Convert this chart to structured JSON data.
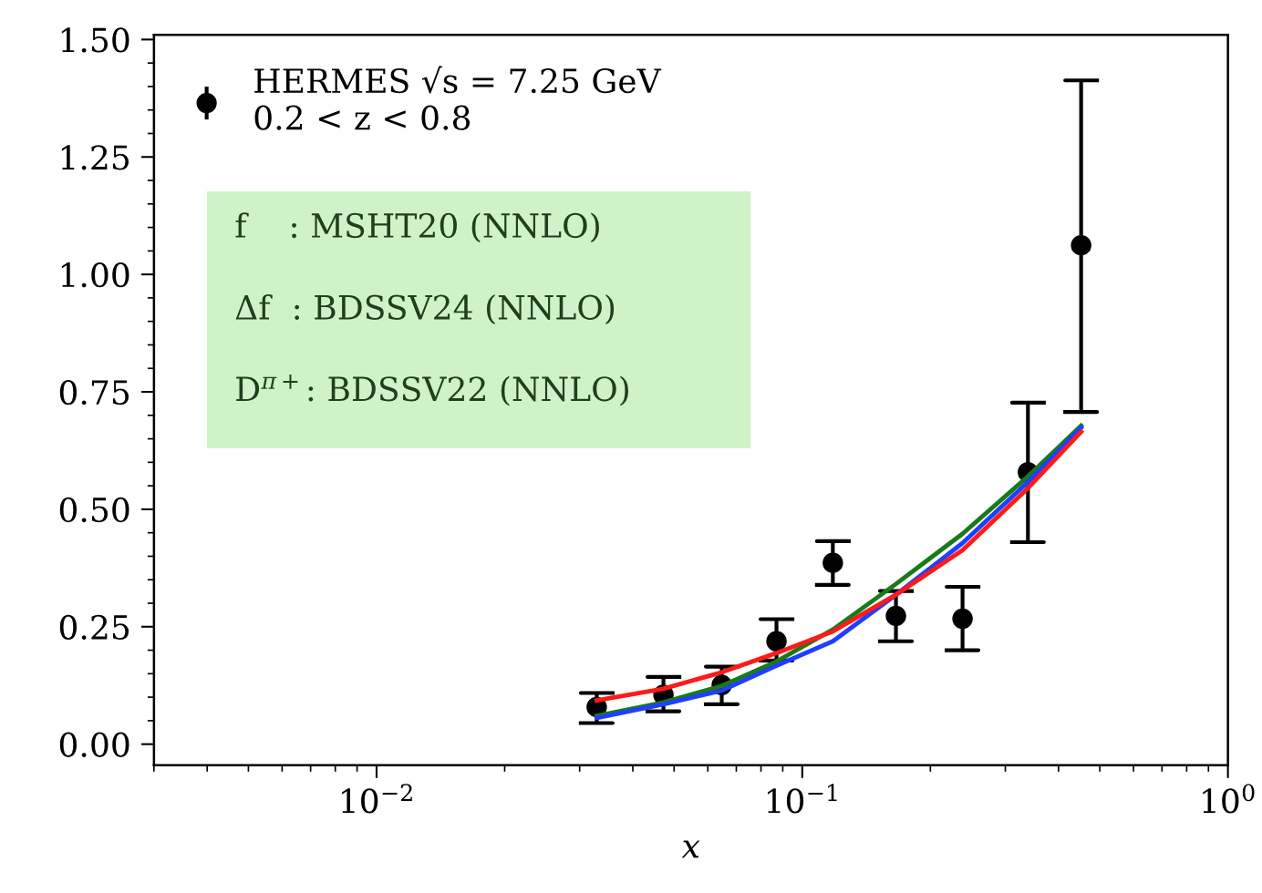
{
  "chart_data": {
    "type": "line",
    "xlabel": "x",
    "log": "x",
    "xlim": [
      0.003,
      1
    ],
    "ylim": [
      -0.045,
      1.51
    ],
    "xticks": [
      {
        "value": 0.01,
        "label": "10$^{−2}$"
      },
      {
        "value": 0.1,
        "label": "10$^{−1}$"
      },
      {
        "value": 1,
        "label": "10$^{0}$"
      }
    ],
    "yticks": [
      {
        "value": 0,
        "label": "0.00"
      },
      {
        "value": 0.25,
        "label": "0.25"
      },
      {
        "value": 0.5,
        "label": "0.50"
      },
      {
        "value": 0.75,
        "label": "0.75"
      },
      {
        "value": 1,
        "label": "1.00"
      },
      {
        "value": 1.25,
        "label": "1.25"
      },
      {
        "value": 1.5,
        "label": "1.50"
      }
    ],
    "grid": false,
    "legend": "top left",
    "series": [
      {
        "color": "#1a7a1a",
        "x": [
          0.0329,
          0.0472,
          0.0647,
          0.087,
          0.118,
          0.166,
          0.238,
          0.339,
          0.452
        ],
        "values": [
          0.06,
          0.089,
          0.124,
          0.176,
          0.244,
          0.341,
          0.448,
          0.57,
          0.678
        ]
      },
      {
        "color": "#1f3fff",
        "x": [
          0.0329,
          0.0472,
          0.0647,
          0.087,
          0.118,
          0.166,
          0.238,
          0.339,
          0.452
        ],
        "values": [
          0.056,
          0.085,
          0.114,
          0.167,
          0.219,
          0.318,
          0.428,
          0.558,
          0.674
        ]
      },
      {
        "color": "#ff1a1a",
        "x": [
          0.0329,
          0.0472,
          0.0647,
          0.087,
          0.118,
          0.166,
          0.238,
          0.339,
          0.452
        ],
        "values": [
          0.093,
          0.118,
          0.153,
          0.194,
          0.24,
          0.318,
          0.413,
          0.545,
          0.665
        ]
      },
      {
        "type": "scatter",
        "name": "HERMES √s = 7.25 GeV\n0.2 < z < 0.8",
        "color": "#000000",
        "marker": "circle",
        "x": [
          0.0329,
          0.0472,
          0.0647,
          0.087,
          0.118,
          0.166,
          0.238,
          0.339,
          0.452
        ],
        "values": [
          0.079,
          0.105,
          0.126,
          0.219,
          0.386,
          0.273,
          0.267,
          0.579,
          1.062
        ],
        "errors": [
          [
            0.045,
            0.109
          ],
          [
            0.07,
            0.143
          ],
          [
            0.085,
            0.165
          ],
          [
            0.178,
            0.266
          ],
          [
            0.339,
            0.432
          ],
          [
            0.219,
            0.326
          ],
          [
            0.2,
            0.335
          ],
          [
            0.43,
            0.727
          ],
          [
            0.707,
            1.413
          ]
        ]
      }
    ],
    "annotations": [
      "f    : MSHT20 (NNLO)",
      "Δf  : BDSSV24 (NNLO)",
      "D$^{π+}$: BDSSV22 (NNLO)"
    ]
  }
}
